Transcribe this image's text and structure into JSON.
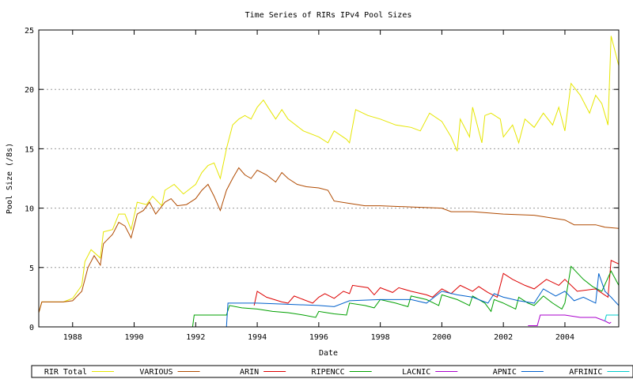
{
  "chart_data": {
    "type": "line",
    "title": "Time Series of RIRs IPv4 Pool Sizes",
    "xlabel": "Date",
    "ylabel": "Pool Size (/8s)",
    "xlim": [
      1986.9,
      2005.75
    ],
    "ylim": [
      0,
      25
    ],
    "x_ticks": [
      1988,
      1990,
      1992,
      1994,
      1996,
      1998,
      2000,
      2002,
      2004
    ],
    "x_tick_labels": [
      "1988",
      "1990",
      "1992",
      "1994",
      "1996",
      "1998",
      "2000",
      "2002",
      "2004"
    ],
    "y_ticks": [
      0,
      5,
      10,
      15,
      20,
      25
    ],
    "y_tick_labels": [
      "0",
      "5",
      "10",
      "15",
      "20",
      "25"
    ],
    "grid": "horizontal dotted",
    "legend_position": "bottom",
    "series": [
      {
        "name": "RIR Total",
        "color": "#e6e600",
        "points": [
          [
            1986.9,
            1.2
          ],
          [
            1987.0,
            2.1
          ],
          [
            1987.7,
            2.1
          ],
          [
            1988.0,
            2.4
          ],
          [
            1988.3,
            3.5
          ],
          [
            1988.4,
            5.5
          ],
          [
            1988.6,
            6.5
          ],
          [
            1988.9,
            5.8
          ],
          [
            1989.0,
            8.0
          ],
          [
            1989.3,
            8.2
          ],
          [
            1989.5,
            9.5
          ],
          [
            1989.7,
            9.5
          ],
          [
            1989.9,
            8.2
          ],
          [
            1990.1,
            10.5
          ],
          [
            1990.4,
            10.3
          ],
          [
            1990.6,
            11.0
          ],
          [
            1990.9,
            10.2
          ],
          [
            1991.0,
            11.5
          ],
          [
            1991.3,
            12.0
          ],
          [
            1991.6,
            11.2
          ],
          [
            1991.9,
            11.8
          ],
          [
            1992.0,
            12.0
          ],
          [
            1992.2,
            13.0
          ],
          [
            1992.4,
            13.6
          ],
          [
            1992.6,
            13.8
          ],
          [
            1992.8,
            12.5
          ],
          [
            1993.0,
            15.0
          ],
          [
            1993.2,
            17.0
          ],
          [
            1993.4,
            17.5
          ],
          [
            1993.6,
            17.8
          ],
          [
            1993.8,
            17.5
          ],
          [
            1994.0,
            18.5
          ],
          [
            1994.2,
            19.1
          ],
          [
            1994.4,
            18.3
          ],
          [
            1994.6,
            17.5
          ],
          [
            1994.8,
            18.3
          ],
          [
            1995.0,
            17.5
          ],
          [
            1995.5,
            16.5
          ],
          [
            1996.0,
            16.0
          ],
          [
            1996.3,
            15.5
          ],
          [
            1996.5,
            16.5
          ],
          [
            1996.9,
            15.8
          ],
          [
            1997.0,
            15.5
          ],
          [
            1997.2,
            18.3
          ],
          [
            1997.6,
            17.8
          ],
          [
            1998.0,
            17.5
          ],
          [
            1998.5,
            17.0
          ],
          [
            1999.0,
            16.8
          ],
          [
            1999.3,
            16.5
          ],
          [
            1999.6,
            18.0
          ],
          [
            2000.0,
            17.3
          ],
          [
            2000.3,
            16.0
          ],
          [
            2000.5,
            14.8
          ],
          [
            2000.6,
            17.5
          ],
          [
            2000.9,
            16.0
          ],
          [
            2001.0,
            18.5
          ],
          [
            2001.3,
            15.5
          ],
          [
            2001.4,
            17.8
          ],
          [
            2001.6,
            18.0
          ],
          [
            2001.9,
            17.5
          ],
          [
            2002.0,
            16.0
          ],
          [
            2002.3,
            17.0
          ],
          [
            2002.5,
            15.5
          ],
          [
            2002.7,
            17.5
          ],
          [
            2003.0,
            16.8
          ],
          [
            2003.3,
            18.0
          ],
          [
            2003.6,
            17.0
          ],
          [
            2003.8,
            18.5
          ],
          [
            2004.0,
            16.5
          ],
          [
            2004.2,
            20.5
          ],
          [
            2004.5,
            19.5
          ],
          [
            2004.8,
            18.0
          ],
          [
            2005.0,
            19.5
          ],
          [
            2005.2,
            18.8
          ],
          [
            2005.4,
            17.0
          ],
          [
            2005.5,
            24.5
          ],
          [
            2005.75,
            22.0
          ]
        ]
      },
      {
        "name": "VARIOUS",
        "color": "#b04a00",
        "points": [
          [
            1986.9,
            1.2
          ],
          [
            1987.0,
            2.1
          ],
          [
            1987.7,
            2.1
          ],
          [
            1988.0,
            2.2
          ],
          [
            1988.3,
            3.0
          ],
          [
            1988.5,
            5.0
          ],
          [
            1988.7,
            6.0
          ],
          [
            1988.9,
            5.2
          ],
          [
            1989.0,
            7.0
          ],
          [
            1989.3,
            7.8
          ],
          [
            1989.5,
            8.8
          ],
          [
            1989.7,
            8.5
          ],
          [
            1989.9,
            7.5
          ],
          [
            1990.1,
            9.5
          ],
          [
            1990.3,
            9.8
          ],
          [
            1990.5,
            10.5
          ],
          [
            1990.7,
            9.5
          ],
          [
            1991.0,
            10.5
          ],
          [
            1991.2,
            10.8
          ],
          [
            1991.4,
            10.2
          ],
          [
            1991.7,
            10.3
          ],
          [
            1992.0,
            10.8
          ],
          [
            1992.2,
            11.5
          ],
          [
            1992.4,
            12.0
          ],
          [
            1992.6,
            11.0
          ],
          [
            1992.8,
            9.8
          ],
          [
            1993.0,
            11.5
          ],
          [
            1993.2,
            12.5
          ],
          [
            1993.4,
            13.4
          ],
          [
            1993.6,
            12.8
          ],
          [
            1993.8,
            12.5
          ],
          [
            1994.0,
            13.2
          ],
          [
            1994.3,
            12.8
          ],
          [
            1994.6,
            12.2
          ],
          [
            1994.8,
            13.0
          ],
          [
            1995.0,
            12.5
          ],
          [
            1995.3,
            12.0
          ],
          [
            1995.6,
            11.8
          ],
          [
            1996.0,
            11.7
          ],
          [
            1996.3,
            11.5
          ],
          [
            1996.5,
            10.6
          ],
          [
            1997.0,
            10.4
          ],
          [
            1997.5,
            10.2
          ],
          [
            1998.0,
            10.2
          ],
          [
            1999.0,
            10.1
          ],
          [
            2000.0,
            10.0
          ],
          [
            2000.3,
            9.7
          ],
          [
            2001.0,
            9.7
          ],
          [
            2001.5,
            9.6
          ],
          [
            2002.0,
            9.5
          ],
          [
            2003.0,
            9.4
          ],
          [
            2003.5,
            9.2
          ],
          [
            2004.0,
            9.0
          ],
          [
            2004.3,
            8.6
          ],
          [
            2005.0,
            8.6
          ],
          [
            2005.3,
            8.4
          ],
          [
            2005.75,
            8.3
          ]
        ]
      },
      {
        "name": "ARIN",
        "color": "#dd0000",
        "points": [
          [
            1993.9,
            1.8
          ],
          [
            1994.0,
            3.0
          ],
          [
            1994.3,
            2.5
          ],
          [
            1994.8,
            2.1
          ],
          [
            1995.0,
            2.0
          ],
          [
            1995.2,
            2.6
          ],
          [
            1995.5,
            2.3
          ],
          [
            1995.8,
            2.0
          ],
          [
            1996.0,
            2.5
          ],
          [
            1996.2,
            2.8
          ],
          [
            1996.5,
            2.4
          ],
          [
            1996.8,
            3.0
          ],
          [
            1997.0,
            2.8
          ],
          [
            1997.1,
            3.5
          ],
          [
            1997.6,
            3.3
          ],
          [
            1997.8,
            2.7
          ],
          [
            1998.0,
            3.3
          ],
          [
            1998.4,
            2.9
          ],
          [
            1998.6,
            3.3
          ],
          [
            1999.0,
            3.0
          ],
          [
            1999.5,
            2.7
          ],
          [
            1999.7,
            2.5
          ],
          [
            2000.0,
            3.2
          ],
          [
            2000.3,
            2.8
          ],
          [
            2000.6,
            3.5
          ],
          [
            2001.0,
            3.0
          ],
          [
            2001.2,
            3.4
          ],
          [
            2001.5,
            2.9
          ],
          [
            2001.8,
            2.5
          ],
          [
            2002.0,
            4.5
          ],
          [
            2002.3,
            4.0
          ],
          [
            2002.7,
            3.5
          ],
          [
            2003.0,
            3.2
          ],
          [
            2003.4,
            4.0
          ],
          [
            2003.8,
            3.5
          ],
          [
            2004.0,
            4.0
          ],
          [
            2004.4,
            3.0
          ],
          [
            2005.0,
            3.2
          ],
          [
            2005.4,
            2.5
          ],
          [
            2005.5,
            5.6
          ],
          [
            2005.75,
            5.3
          ]
        ]
      },
      {
        "name": "RIPENCC",
        "color": "#00a000",
        "points": [
          [
            1991.9,
            0.0
          ],
          [
            1991.95,
            1.0
          ],
          [
            1992.5,
            1.0
          ],
          [
            1993.0,
            1.0
          ],
          [
            1993.1,
            1.8
          ],
          [
            1993.5,
            1.6
          ],
          [
            1994.0,
            1.5
          ],
          [
            1994.5,
            1.3
          ],
          [
            1995.0,
            1.2
          ],
          [
            1995.5,
            1.0
          ],
          [
            1995.9,
            0.8
          ],
          [
            1996.0,
            1.3
          ],
          [
            1996.5,
            1.1
          ],
          [
            1996.9,
            1.0
          ],
          [
            1997.0,
            2.0
          ],
          [
            1997.5,
            1.8
          ],
          [
            1997.8,
            1.6
          ],
          [
            1998.0,
            2.3
          ],
          [
            1998.5,
            2.0
          ],
          [
            1998.9,
            1.7
          ],
          [
            1999.0,
            2.6
          ],
          [
            1999.5,
            2.3
          ],
          [
            1999.9,
            1.8
          ],
          [
            2000.0,
            2.7
          ],
          [
            2000.5,
            2.3
          ],
          [
            2000.9,
            1.8
          ],
          [
            2001.0,
            2.6
          ],
          [
            2001.4,
            2.0
          ],
          [
            2001.6,
            1.3
          ],
          [
            2001.7,
            2.3
          ],
          [
            2002.0,
            2.0
          ],
          [
            2002.4,
            1.5
          ],
          [
            2002.5,
            2.5
          ],
          [
            2002.8,
            2.0
          ],
          [
            2003.0,
            1.8
          ],
          [
            2003.3,
            2.6
          ],
          [
            2003.6,
            2.0
          ],
          [
            2003.9,
            1.5
          ],
          [
            2004.0,
            2.0
          ],
          [
            2004.2,
            5.1
          ],
          [
            2004.6,
            4.0
          ],
          [
            2004.9,
            3.4
          ],
          [
            2005.2,
            3.0
          ],
          [
            2005.5,
            4.7
          ],
          [
            2005.75,
            3.5
          ]
        ]
      },
      {
        "name": "LACNIC",
        "color": "#aa00cc",
        "points": [
          [
            2002.8,
            0.1
          ],
          [
            2003.1,
            0.1
          ],
          [
            2003.2,
            1.0
          ],
          [
            2004.0,
            1.0
          ],
          [
            2004.5,
            0.8
          ],
          [
            2005.0,
            0.8
          ],
          [
            2005.2,
            0.6
          ],
          [
            2005.3,
            0.5
          ],
          [
            2005.45,
            0.3
          ],
          [
            2005.5,
            0.4
          ]
        ]
      },
      {
        "name": "APNIC",
        "color": "#0060cc",
        "points": [
          [
            1993.0,
            0.0
          ],
          [
            1993.05,
            2.0
          ],
          [
            1994.0,
            2.0
          ],
          [
            1995.0,
            1.9
          ],
          [
            1996.0,
            1.8
          ],
          [
            1996.5,
            1.7
          ],
          [
            1997.0,
            2.2
          ],
          [
            1998.0,
            2.3
          ],
          [
            1999.0,
            2.3
          ],
          [
            1999.5,
            2.0
          ],
          [
            2000.0,
            3.0
          ],
          [
            2000.5,
            2.7
          ],
          [
            2001.0,
            2.5
          ],
          [
            2001.5,
            2.0
          ],
          [
            2001.7,
            2.8
          ],
          [
            2002.0,
            2.5
          ],
          [
            2002.5,
            2.2
          ],
          [
            2003.0,
            2.0
          ],
          [
            2003.3,
            3.2
          ],
          [
            2003.7,
            2.6
          ],
          [
            2004.0,
            3.0
          ],
          [
            2004.3,
            2.2
          ],
          [
            2004.6,
            2.5
          ],
          [
            2005.0,
            2.0
          ],
          [
            2005.1,
            4.5
          ],
          [
            2005.3,
            3.0
          ],
          [
            2005.5,
            2.5
          ],
          [
            2005.75,
            1.8
          ]
        ]
      },
      {
        "name": "AFRINIC",
        "color": "#00cccc",
        "points": [
          [
            2005.3,
            0.5
          ],
          [
            2005.35,
            1.0
          ],
          [
            2005.75,
            1.0
          ]
        ]
      }
    ]
  }
}
